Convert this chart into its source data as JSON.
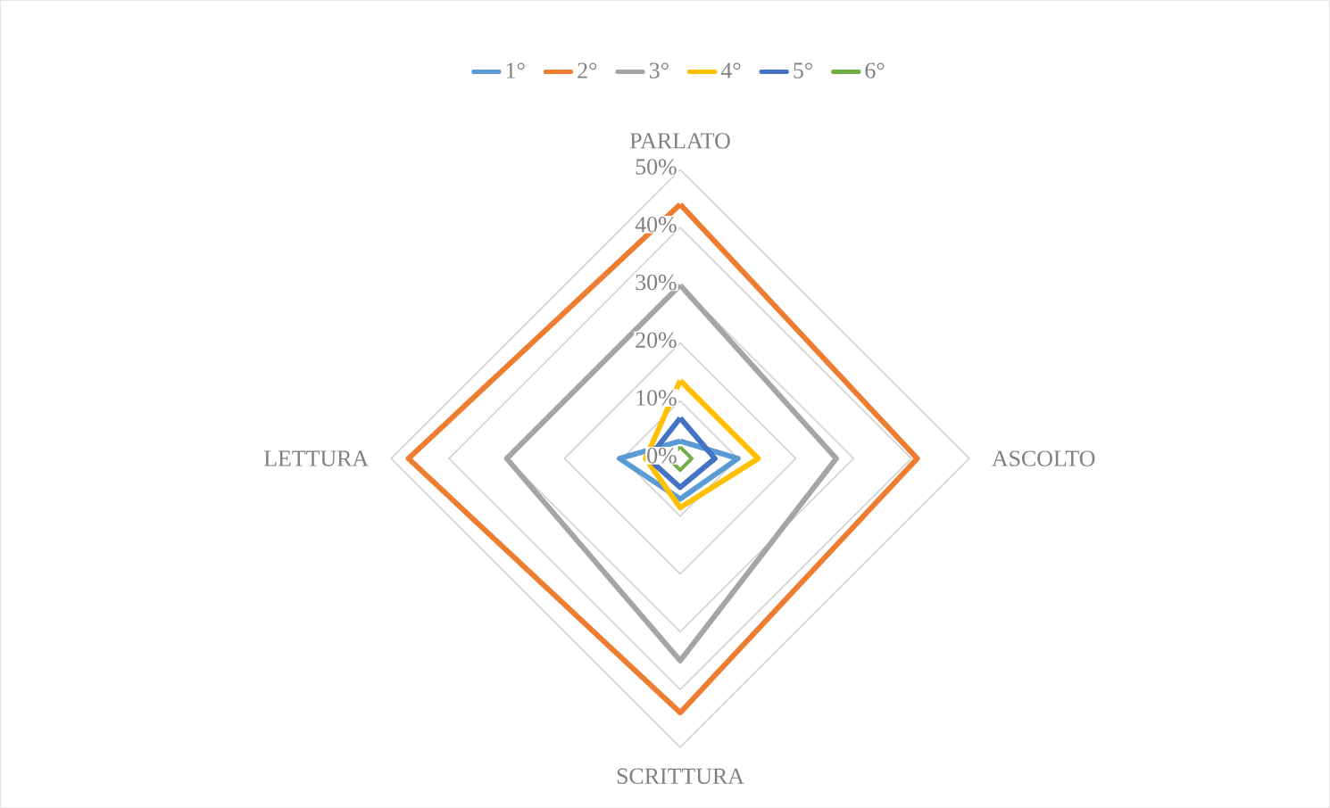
{
  "chart_data": {
    "type": "radar",
    "categories": [
      "PARLATO",
      "ASCOLTO",
      "SCRITTURA",
      "LETTURA"
    ],
    "series": [
      {
        "name": "1°",
        "color": "#5b9bd5",
        "values": [
          3,
          10,
          7,
          10.5
        ]
      },
      {
        "name": "2°",
        "color": "#ed7d31",
        "values": [
          44,
          41,
          44,
          47
        ]
      },
      {
        "name": "3°",
        "color": "#a5a5a5",
        "values": [
          30,
          27,
          35,
          30
        ]
      },
      {
        "name": "4°",
        "color": "#ffc000",
        "values": [
          13.5,
          13.5,
          8.5,
          6
        ]
      },
      {
        "name": "5°",
        "color": "#4472c4",
        "values": [
          7,
          6,
          5,
          5.5
        ]
      },
      {
        "name": "6°",
        "color": "#70ad47",
        "values": [
          2,
          2,
          2,
          2
        ]
      }
    ],
    "ylim": [
      0,
      50
    ],
    "yticks": [
      {
        "value": 0,
        "label": "0%"
      },
      {
        "value": 10,
        "label": "10%"
      },
      {
        "value": 20,
        "label": "20%"
      },
      {
        "value": 30,
        "label": "30%"
      },
      {
        "value": 40,
        "label": "40%"
      },
      {
        "value": 50,
        "label": "50%"
      }
    ],
    "grid": true,
    "legend": "top",
    "line_style": "solid",
    "marker": "none"
  }
}
